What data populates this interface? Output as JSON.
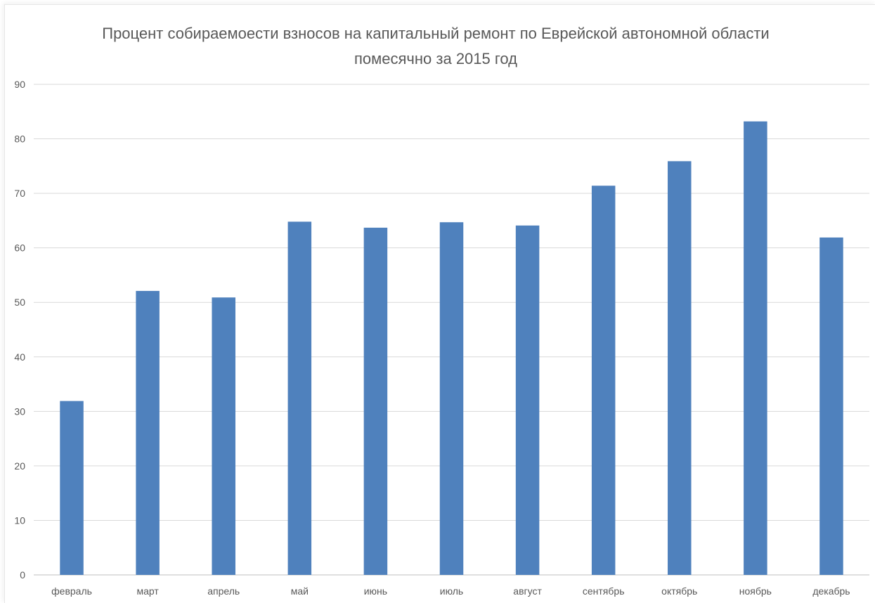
{
  "chart_data": {
    "type": "bar",
    "title_line1": "Процент собираемоести  взносов на капитальный ремонт по Еврейской автономной области",
    "title_line2": "помесячно за 2015 год",
    "categories": [
      "февраль",
      "март",
      "апрель",
      "май",
      "июнь",
      "июль",
      "август",
      "сентябрь",
      "октябрь",
      "ноябрь",
      "декабрь"
    ],
    "series": [
      {
        "values": [
          31.9,
          52.1,
          50.9,
          64.8,
          63.7,
          64.7,
          64.1,
          71.4,
          75.9,
          83.2,
          61.9
        ],
        "color": "#4f81bd"
      }
    ],
    "ylim": [
      0,
      90
    ],
    "yticks": [
      0,
      10,
      20,
      30,
      40,
      50,
      60,
      70,
      80,
      90
    ],
    "grid": true,
    "legend": "none"
  }
}
